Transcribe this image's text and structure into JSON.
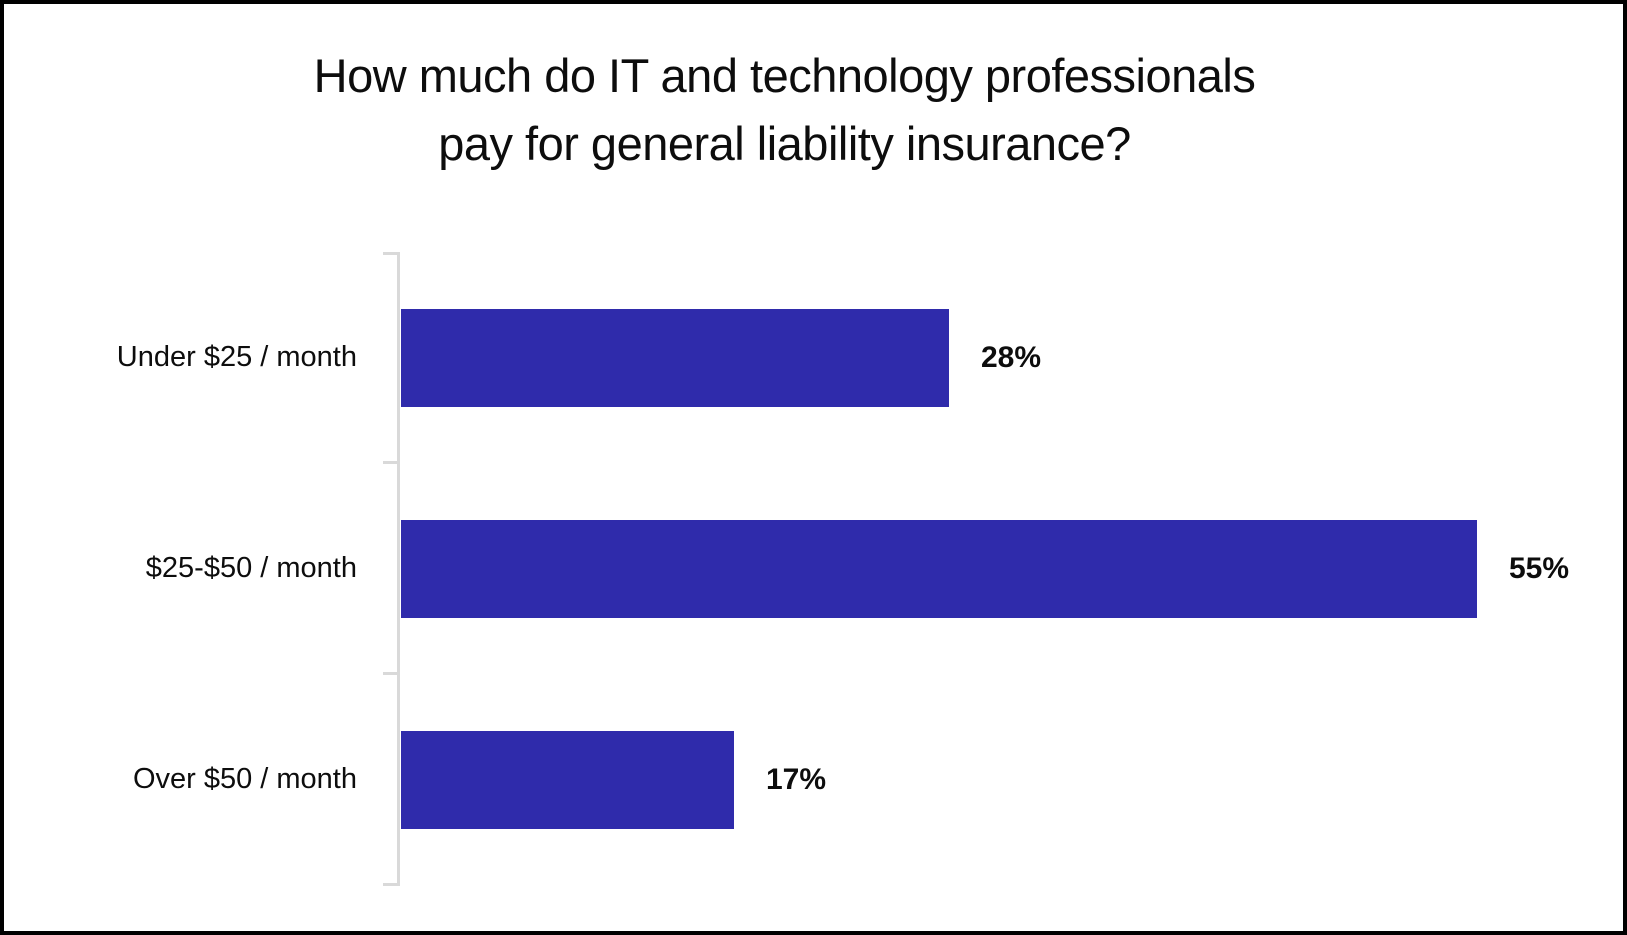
{
  "chart_data": {
    "type": "bar",
    "orientation": "horizontal",
    "title": "How much do IT and technology professionals pay for general liability insurance?",
    "title_lines": [
      "How much do IT and technology professionals",
      "pay for general liability insurance?"
    ],
    "categories": [
      "Under $25 / month",
      "$25-$50 / month",
      "Over $50 / month"
    ],
    "values": [
      28,
      55,
      17
    ],
    "value_labels": [
      "28%",
      "55%",
      "17%"
    ],
    "xlim": [
      0,
      57.5
    ],
    "unit": "percent",
    "grid": false,
    "legend": false,
    "bar_color": "#2F2BAB",
    "axis_color": "#D9D9D9",
    "text_color": "#0d0d0d"
  }
}
